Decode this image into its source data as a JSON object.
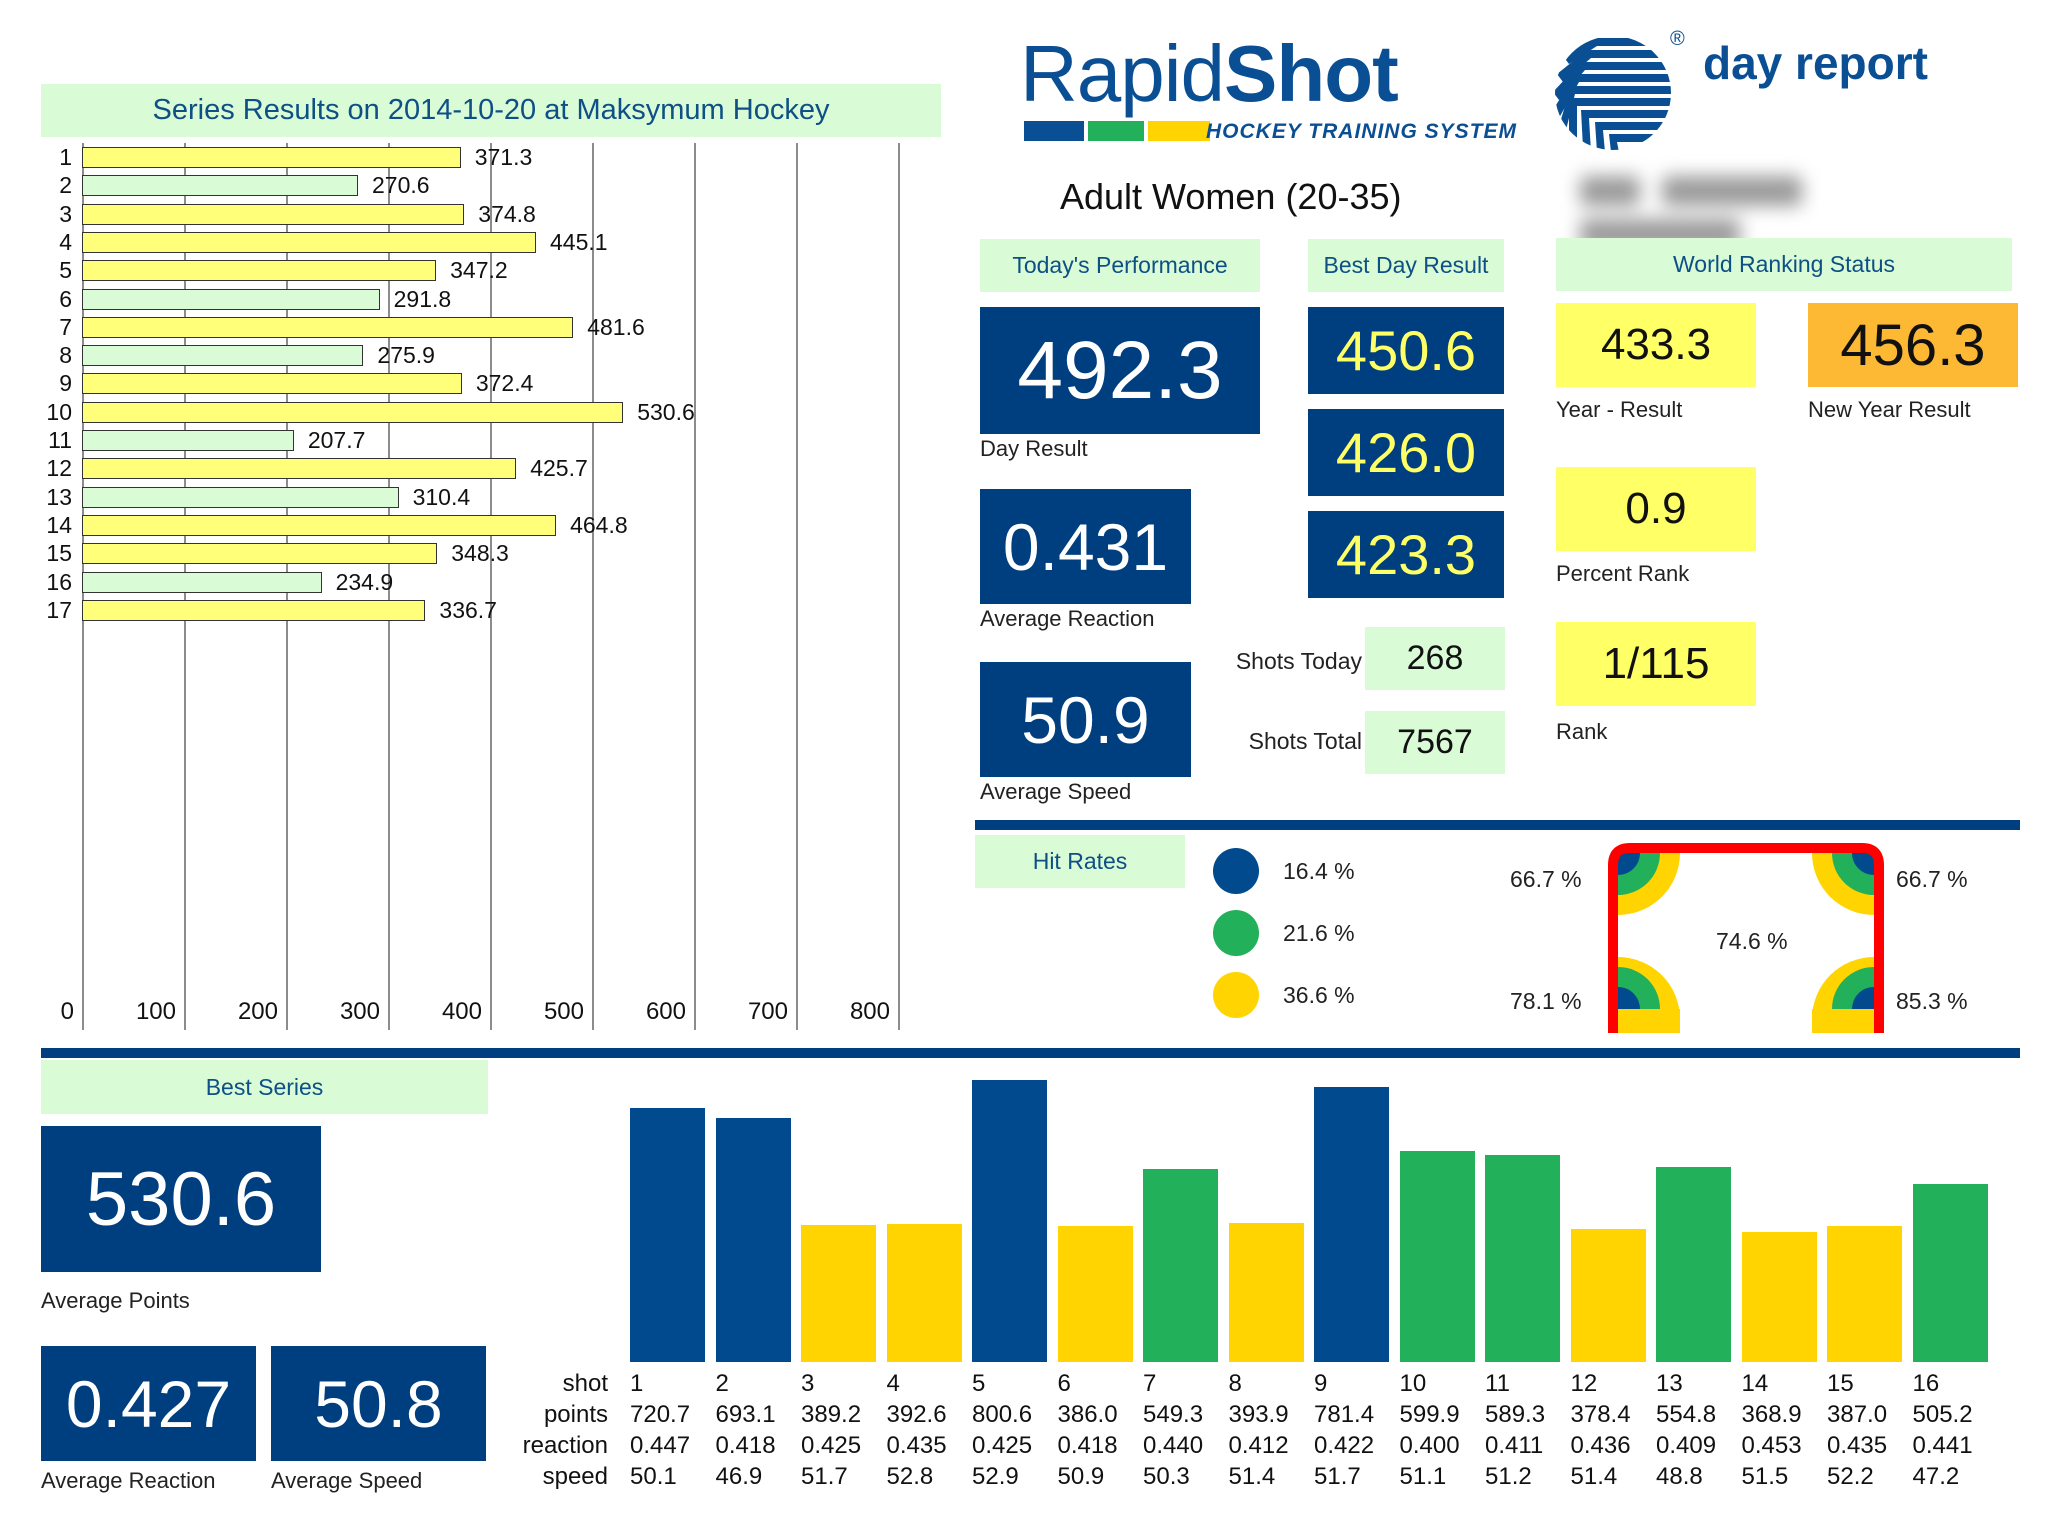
{
  "header": {
    "brand_light": "Rapid",
    "brand_bold": "Shot",
    "brand_sub": "HOCKEY TRAINING SYSTEM",
    "report_type": "day report",
    "registered_mark": "®",
    "category": "Adult Women (20-35)",
    "player_name_redacted": true,
    "brand_colors": {
      "blue": "#0a4f94",
      "green": "#22b05a",
      "yellow": "#ffd400"
    }
  },
  "series_chart_title": "Series Results on 2014-10-20 at Maksymum Hockey",
  "chart_data": [
    {
      "type": "bar",
      "orientation": "horizontal",
      "title": "Series Results on 2014-10-20 at Maksymum Hockey",
      "categories": [
        "1",
        "2",
        "3",
        "4",
        "5",
        "6",
        "7",
        "8",
        "9",
        "10",
        "11",
        "12",
        "13",
        "14",
        "15",
        "16",
        "17"
      ],
      "values": [
        371.3,
        270.6,
        374.8,
        445.1,
        347.2,
        291.8,
        481.6,
        275.9,
        372.4,
        530.6,
        207.7,
        425.7,
        310.4,
        464.8,
        348.3,
        234.9,
        336.7
      ],
      "value_labels": [
        "371.3",
        "270.6",
        "374.8",
        "445.1",
        "347.2",
        "291.8",
        "481.6",
        "275.9",
        "372.4",
        "530.6",
        "207.7",
        "425.7",
        "310.4",
        "464.8",
        "348.3",
        "234.9",
        "336.7"
      ],
      "bar_colors": [
        "#ffff7a",
        "#d9fbd6",
        "#ffff7a",
        "#ffff7a",
        "#ffff7a",
        "#d9fbd6",
        "#ffff7a",
        "#d9fbd6",
        "#ffff7a",
        "#ffff7a",
        "#d9fbd6",
        "#ffff7a",
        "#d9fbd6",
        "#ffff7a",
        "#ffff7a",
        "#d9fbd6",
        "#ffff7a"
      ],
      "xlim": [
        0,
        800
      ],
      "xticks": [
        "0",
        "100",
        "200",
        "300",
        "400",
        "500",
        "600",
        "700",
        "800"
      ],
      "grid": true,
      "xlabel": "",
      "ylabel": ""
    },
    {
      "type": "bar",
      "title": "Best Series shots",
      "categories": [
        "1",
        "2",
        "3",
        "4",
        "5",
        "6",
        "7",
        "8",
        "9",
        "10",
        "11",
        "12",
        "13",
        "14",
        "15",
        "16"
      ],
      "values": [
        720.7,
        693.1,
        389.2,
        392.6,
        800.6,
        386.0,
        549.3,
        393.9,
        781.4,
        599.9,
        589.3,
        378.4,
        554.8,
        368.9,
        387.0,
        505.2
      ],
      "bar_colors": [
        "#004a8d",
        "#004a8d",
        "#ffd400",
        "#ffd400",
        "#004a8d",
        "#ffd400",
        "#22b05a",
        "#ffd400",
        "#004a8d",
        "#22b05a",
        "#22b05a",
        "#ffd400",
        "#22b05a",
        "#ffd400",
        "#ffd400",
        "#22b05a"
      ],
      "ylim": [
        0,
        800
      ],
      "grid": false,
      "xlabel": "shot",
      "ylabel": "points"
    }
  ],
  "todays_performance": {
    "title": "Today's Performance",
    "day_result": {
      "value": "492.3",
      "label": "Day Result"
    },
    "average_reaction": {
      "value": "0.431",
      "label": "Average Reaction"
    },
    "average_speed": {
      "value": "50.9",
      "label": "Average Speed"
    }
  },
  "best_day_result": {
    "title": "Best Day Result",
    "values": [
      "450.6",
      "426.0",
      "423.3"
    ]
  },
  "shots": {
    "today_label": "Shots Today",
    "today_value": "268",
    "total_label": "Shots Total",
    "total_value": "7567"
  },
  "world_ranking": {
    "title": "World Ranking Status",
    "year_result": {
      "value": "433.3",
      "label": "Year - Result"
    },
    "new_year_result": {
      "value": "456.3",
      "label": "New Year Result"
    },
    "percent_rank": {
      "value": "0.9",
      "label": "Percent Rank"
    },
    "rank": {
      "value": "1/115",
      "label": "Rank"
    }
  },
  "hit_rates": {
    "title": "Hit Rates",
    "legend": [
      {
        "color": "#004a8d",
        "value": "16.4 %"
      },
      {
        "color": "#22b05a",
        "value": "21.6 %"
      },
      {
        "color": "#ffd400",
        "value": "36.6 %"
      }
    ],
    "goal": {
      "top_left": "66.7 %",
      "top_right": "66.7 %",
      "bottom_left": "78.1 %",
      "bottom_right": "85.3 %",
      "center": "74.6 %",
      "frame_color": "#ff0000"
    }
  },
  "best_series": {
    "title": "Best Series",
    "average_points": {
      "value": "530.6",
      "label": "Average Points"
    },
    "average_reaction": {
      "value": "0.427",
      "label": "Average Reaction"
    },
    "average_speed": {
      "value": "50.8",
      "label": "Average Speed"
    }
  },
  "shot_table": {
    "row_labels": [
      "shot",
      "points",
      "reaction",
      "speed"
    ],
    "shot": [
      "1",
      "2",
      "3",
      "4",
      "5",
      "6",
      "7",
      "8",
      "9",
      "10",
      "11",
      "12",
      "13",
      "14",
      "15",
      "16"
    ],
    "points": [
      "720.7",
      "693.1",
      "389.2",
      "392.6",
      "800.6",
      "386.0",
      "549.3",
      "393.9",
      "781.4",
      "599.9",
      "589.3",
      "378.4",
      "554.8",
      "368.9",
      "387.0",
      "505.2"
    ],
    "reaction": [
      "0.447",
      "0.418",
      "0.425",
      "0.435",
      "0.425",
      "0.418",
      "0.440",
      "0.412",
      "0.422",
      "0.400",
      "0.411",
      "0.436",
      "0.409",
      "0.453",
      "0.435",
      "0.441"
    ],
    "speed": [
      "50.1",
      "46.9",
      "51.7",
      "52.8",
      "52.9",
      "50.9",
      "50.3",
      "51.4",
      "51.7",
      "51.1",
      "51.2",
      "51.4",
      "48.8",
      "51.5",
      "52.2",
      "47.2"
    ]
  }
}
